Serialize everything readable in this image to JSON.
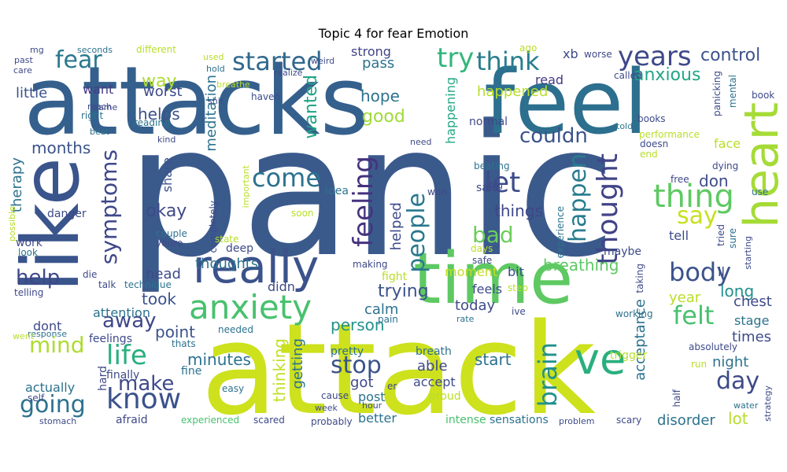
{
  "figure": {
    "title": "Topic 4 for fear Emotion"
  },
  "words": [
    {
      "text": "panic",
      "color": "#3b5a8c"
    },
    {
      "text": "attack",
      "color": "#cde11d"
    },
    {
      "text": "attacks",
      "color": "#35608d"
    },
    {
      "text": "feel",
      "color": "#2d6f8e"
    },
    {
      "text": "like",
      "color": "#3a548c"
    },
    {
      "text": "time",
      "color": "#5ec962"
    },
    {
      "text": "really",
      "color": "#3b528b"
    },
    {
      "text": "heart",
      "color": "#a5db36"
    },
    {
      "text": "ve",
      "color": "#29af7f"
    },
    {
      "text": "anxiety",
      "color": "#48c16e"
    },
    {
      "text": "years",
      "color": "#3e4989"
    },
    {
      "text": "started",
      "color": "#31688e"
    },
    {
      "text": "think",
      "color": "#287d8e"
    },
    {
      "text": "fear",
      "color": "#2a788e"
    },
    {
      "text": "try",
      "color": "#32b67a"
    },
    {
      "text": "symptoms",
      "color": "#3f4889"
    },
    {
      "text": "thing",
      "color": "#5ec962"
    },
    {
      "text": "thought",
      "color": "#414487"
    },
    {
      "text": "let",
      "color": "#3e4c8a"
    },
    {
      "text": "come",
      "color": "#2c728e"
    },
    {
      "text": "feeling",
      "color": "#46327e"
    },
    {
      "text": "people",
      "color": "#2a788e"
    },
    {
      "text": "happen",
      "color": "#287c8e"
    },
    {
      "text": "body",
      "color": "#3b528b"
    },
    {
      "text": "say",
      "color": "#c8e020"
    },
    {
      "text": "felt",
      "color": "#48c16e"
    },
    {
      "text": "day",
      "color": "#3e4a89"
    },
    {
      "text": "know",
      "color": "#3b528b"
    },
    {
      "text": "going",
      "color": "#2c728e"
    },
    {
      "text": "make",
      "color": "#3e4a89"
    },
    {
      "text": "life",
      "color": "#29af7f"
    },
    {
      "text": "mind",
      "color": "#addc30"
    },
    {
      "text": "away",
      "color": "#3f4788"
    },
    {
      "text": "help",
      "color": "#3f4788"
    },
    {
      "text": "brain",
      "color": "#21918c"
    },
    {
      "text": "stop",
      "color": "#3b528b"
    },
    {
      "text": "bad",
      "color": "#6ccd5a"
    },
    {
      "text": "control",
      "color": "#3b528b"
    },
    {
      "text": "anxious",
      "color": "#21a685"
    },
    {
      "text": "couldn",
      "color": "#3b528b"
    },
    {
      "text": "wanted",
      "color": "#20a386"
    },
    {
      "text": "hope",
      "color": "#2c728e"
    },
    {
      "text": "good",
      "color": "#a0da39"
    },
    {
      "text": "okay",
      "color": "#3e4989"
    },
    {
      "text": "things",
      "color": "#3f4788"
    },
    {
      "text": "don",
      "color": "#3e4c8a"
    },
    {
      "text": "breathing",
      "color": "#5ec962"
    },
    {
      "text": "trying",
      "color": "#3b528b"
    },
    {
      "text": "long",
      "color": "#21918c"
    },
    {
      "text": "months",
      "color": "#3b528b"
    },
    {
      "text": "helps",
      "color": "#3b528b"
    },
    {
      "text": "worst",
      "color": "#3e4a89"
    },
    {
      "text": "way",
      "color": "#addc30"
    },
    {
      "text": "little",
      "color": "#3b528b"
    },
    {
      "text": "want",
      "color": "#443983"
    },
    {
      "text": "happened",
      "color": "#b8de29"
    },
    {
      "text": "read",
      "color": "#443983"
    },
    {
      "text": "xb",
      "color": "#3e4a89"
    },
    {
      "text": "pass",
      "color": "#2c728e"
    },
    {
      "text": "strong",
      "color": "#414487"
    },
    {
      "text": "happening",
      "color": "#22a884"
    },
    {
      "text": "normal",
      "color": "#3e4a89"
    },
    {
      "text": "meditation",
      "color": "#2c728e"
    },
    {
      "text": "therapy",
      "color": "#2c728e"
    },
    {
      "text": "share",
      "color": "#3b528b"
    },
    {
      "text": "head",
      "color": "#3e4a89"
    },
    {
      "text": "took",
      "color": "#3b528b"
    },
    {
      "text": "attention",
      "color": "#2c728e"
    },
    {
      "text": "point",
      "color": "#3b528b"
    },
    {
      "text": "minutes",
      "color": "#2c728e"
    },
    {
      "text": "thoughts",
      "color": "#2c728e"
    },
    {
      "text": "didn",
      "color": "#3e4a89"
    },
    {
      "text": "thinking",
      "color": "#c2df23"
    },
    {
      "text": "getting",
      "color": "#2c728e"
    },
    {
      "text": "helped",
      "color": "#3e4a89"
    },
    {
      "text": "person",
      "color": "#21918c"
    },
    {
      "text": "calm",
      "color": "#2c728e"
    },
    {
      "text": "got",
      "color": "#3e4a89"
    },
    {
      "text": "able",
      "color": "#3e4a89"
    },
    {
      "text": "accept",
      "color": "#3e4a89"
    },
    {
      "text": "post",
      "color": "#2c728e"
    },
    {
      "text": "start",
      "color": "#2c728e"
    },
    {
      "text": "today",
      "color": "#3e4a89"
    },
    {
      "text": "feels",
      "color": "#3e4a89"
    },
    {
      "text": "moment",
      "color": "#c2df23"
    },
    {
      "text": "bit",
      "color": "#3e4a89"
    },
    {
      "text": "year",
      "color": "#b8de29"
    },
    {
      "text": "chest",
      "color": "#3e4a89"
    },
    {
      "text": "stage",
      "color": "#2c728e"
    },
    {
      "text": "times",
      "color": "#3e4a89"
    },
    {
      "text": "night",
      "color": "#2c728e"
    },
    {
      "text": "lot",
      "color": "#b8de29"
    },
    {
      "text": "disorder",
      "color": "#2c728e"
    },
    {
      "text": "acceptance",
      "color": "#2c728e"
    },
    {
      "text": "tell",
      "color": "#3e4a89"
    },
    {
      "text": "face",
      "color": "#b8de29"
    },
    {
      "text": "maybe",
      "color": "#3e4a89"
    },
    {
      "text": "ll",
      "color": "#3e4a89"
    },
    {
      "text": "actually",
      "color": "#2c728e"
    },
    {
      "text": "dont",
      "color": "#3e4a89"
    },
    {
      "text": "better",
      "color": "#2c728e"
    },
    {
      "text": "intense",
      "color": "#48c16e"
    },
    {
      "text": "sensations",
      "color": "#2c728e"
    },
    {
      "text": "afraid",
      "color": "#3e4a89"
    },
    {
      "text": "experienced",
      "color": "#48c16e"
    },
    {
      "text": "scared",
      "color": "#3e4a89"
    },
    {
      "text": "probably",
      "color": "#3e4a89"
    },
    {
      "text": "stomach",
      "color": "#3e4a89"
    },
    {
      "text": "problem",
      "color": "#3e4a89"
    },
    {
      "text": "scary",
      "color": "#3e4a89"
    },
    {
      "text": "danger",
      "color": "#3e4a89"
    },
    {
      "text": "work",
      "color": "#3e4a89"
    },
    {
      "text": "look",
      "color": "#2c728e"
    },
    {
      "text": "telling",
      "color": "#3e4a89"
    },
    {
      "text": "talk",
      "color": "#3e4a89"
    },
    {
      "text": "die",
      "color": "#3e4a89"
    },
    {
      "text": "response",
      "color": "#2c728e"
    },
    {
      "text": "went",
      "color": "#b8de29"
    },
    {
      "text": "feelings",
      "color": "#3e4a89"
    },
    {
      "text": "thats",
      "color": "#2c728e"
    },
    {
      "text": "fine",
      "color": "#2c728e"
    },
    {
      "text": "hard",
      "color": "#3e4a89"
    },
    {
      "text": "finally",
      "color": "#3e4a89"
    },
    {
      "text": "self",
      "color": "#3e4a89"
    },
    {
      "text": "easy",
      "color": "#2c728e"
    },
    {
      "text": "cause",
      "color": "#3e4a89"
    },
    {
      "text": "er",
      "color": "#3e4a89"
    },
    {
      "text": "proud",
      "color": "#b8de29"
    },
    {
      "text": "pretty",
      "color": "#2c728e"
    },
    {
      "text": "breath",
      "color": "#2c728e"
    },
    {
      "text": "trigger",
      "color": "#b8de29"
    },
    {
      "text": "absolutely",
      "color": "#3e4a89"
    },
    {
      "text": "working",
      "color": "#2c728e"
    },
    {
      "text": "rate",
      "color": "#2c728e"
    },
    {
      "text": "ive",
      "color": "#3e4a89"
    },
    {
      "text": "pain",
      "color": "#2c728e"
    },
    {
      "text": "fight",
      "color": "#b8de29"
    },
    {
      "text": "step",
      "color": "#b8de29"
    },
    {
      "text": "making",
      "color": "#3e4a89"
    },
    {
      "text": "safe",
      "color": "#3e4a89"
    },
    {
      "text": "days",
      "color": "#b8de29"
    },
    {
      "text": "needed",
      "color": "#2c728e"
    },
    {
      "text": "technique",
      "color": "#2c728e"
    },
    {
      "text": "state",
      "color": "#b8de29"
    },
    {
      "text": "deep",
      "color": "#3e4a89"
    },
    {
      "text": "couple",
      "color": "#2c728e"
    },
    {
      "text": "youre",
      "color": "#3e4a89"
    },
    {
      "text": "soon",
      "color": "#b8de29"
    },
    {
      "text": "possible",
      "color": "#b8de29"
    },
    {
      "text": "completely",
      "color": "#3e4a89"
    },
    {
      "text": "important",
      "color": "#b8de29"
    },
    {
      "text": "idea",
      "color": "#2c728e"
    },
    {
      "text": "won",
      "color": "#3e4a89"
    },
    {
      "text": "said",
      "color": "#3e4a89"
    },
    {
      "text": "big",
      "color": "#3e4a89"
    },
    {
      "text": "beating",
      "color": "#2c728e"
    },
    {
      "text": "experience",
      "color": "#2c728e"
    },
    {
      "text": "need",
      "color": "#3e4a89"
    },
    {
      "text": "performance",
      "color": "#b8de29"
    },
    {
      "text": "doesn",
      "color": "#3e4a89"
    },
    {
      "text": "end",
      "color": "#b8de29"
    },
    {
      "text": "free",
      "color": "#3e4a89"
    },
    {
      "text": "dying",
      "color": "#3e4a89"
    },
    {
      "text": "use",
      "color": "#2c728e"
    },
    {
      "text": "taking",
      "color": "#3e4a89"
    },
    {
      "text": "tried",
      "color": "#3e4a89"
    },
    {
      "text": "sure",
      "color": "#2c728e"
    },
    {
      "text": "starting",
      "color": "#3e4a89"
    },
    {
      "text": "half",
      "color": "#3e4a89"
    },
    {
      "text": "run",
      "color": "#b8de29"
    },
    {
      "text": "water",
      "color": "#2c728e"
    },
    {
      "text": "strategy",
      "color": "#3e4a89"
    },
    {
      "text": "mg",
      "color": "#3e4a89"
    },
    {
      "text": "seconds",
      "color": "#2c728e"
    },
    {
      "text": "different",
      "color": "#b8de29"
    },
    {
      "text": "used",
      "color": "#b8de29"
    },
    {
      "text": "realize",
      "color": "#3e4a89"
    },
    {
      "text": "weird",
      "color": "#3e4a89"
    },
    {
      "text": "past",
      "color": "#3e4a89"
    },
    {
      "text": "care",
      "color": "#3e4a89"
    },
    {
      "text": "hold",
      "color": "#2c728e"
    },
    {
      "text": "breathe",
      "color": "#b8de29"
    },
    {
      "text": "haven",
      "color": "#3e4a89"
    },
    {
      "text": "shit",
      "color": "#3e4a89"
    },
    {
      "text": "ago",
      "color": "#b8de29"
    },
    {
      "text": "worse",
      "color": "#3e4a89"
    },
    {
      "text": "called",
      "color": "#3e4a89"
    },
    {
      "text": "panicking",
      "color": "#3e4a89"
    },
    {
      "text": "mental",
      "color": "#2c728e"
    },
    {
      "text": "book",
      "color": "#3e4a89"
    },
    {
      "text": "told",
      "color": "#2c728e"
    },
    {
      "text": "books",
      "color": "#3e4a89"
    },
    {
      "text": "came",
      "color": "#3e4a89"
    },
    {
      "text": "reach",
      "color": "#3e4a89"
    },
    {
      "text": "right",
      "color": "#2c728e"
    },
    {
      "text": "beat",
      "color": "#2c728e"
    },
    {
      "text": "reading",
      "color": "#2c728e"
    },
    {
      "text": "kind",
      "color": "#3e4a89"
    },
    {
      "text": "week",
      "color": "#3e4a89"
    },
    {
      "text": "hour",
      "color": "#3e4a89"
    }
  ]
}
